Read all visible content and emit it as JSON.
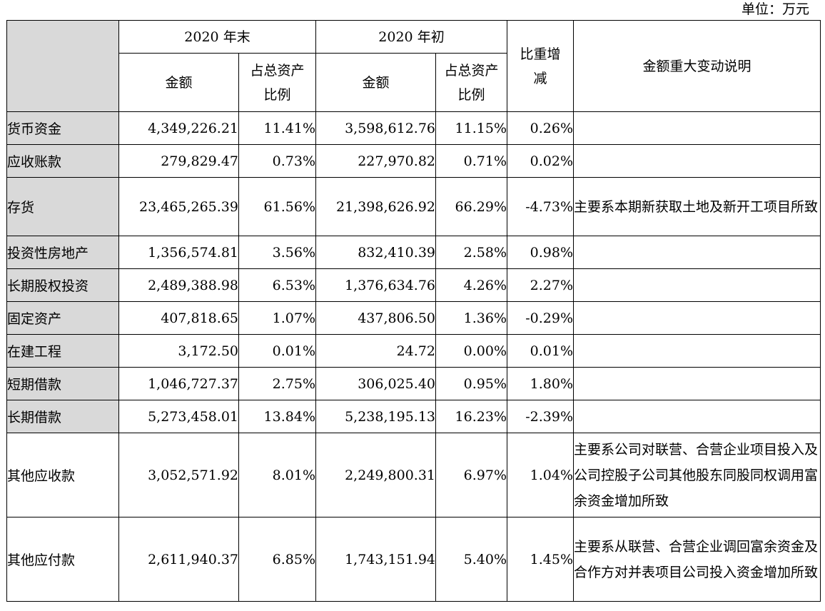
{
  "unit_label": "单位：万元",
  "header": {
    "group_end": "2020 年末",
    "group_begin": "2020 年初",
    "amount": "金额",
    "ratio": "占总资产比例",
    "change": "比重增减",
    "note": "金额重大变动说明"
  },
  "rows": [
    {
      "name": "货币资金",
      "end_amount": "4,349,226.21",
      "end_ratio": "11.41%",
      "begin_amount": "3,598,612.76",
      "begin_ratio": "11.15%",
      "change": "0.26%",
      "note": ""
    },
    {
      "name": "应收账款",
      "end_amount": "279,829.47",
      "end_ratio": "0.73%",
      "begin_amount": "227,970.82",
      "begin_ratio": "0.71%",
      "change": "0.02%",
      "note": ""
    },
    {
      "name": "存货",
      "end_amount": "23,465,265.39",
      "end_ratio": "61.56%",
      "begin_amount": "21,398,626.92",
      "begin_ratio": "66.29%",
      "change": "-4.73%",
      "note": "主要系本期新获取土地及新开工项目所致"
    },
    {
      "name": "投资性房地产",
      "end_amount": "1,356,574.81",
      "end_ratio": "3.56%",
      "begin_amount": "832,410.39",
      "begin_ratio": "2.58%",
      "change": "0.98%",
      "note": ""
    },
    {
      "name": "长期股权投资",
      "end_amount": "2,489,388.98",
      "end_ratio": "6.53%",
      "begin_amount": "1,376,634.76",
      "begin_ratio": "4.26%",
      "change": "2.27%",
      "note": ""
    },
    {
      "name": "固定资产",
      "end_amount": "407,818.65",
      "end_ratio": "1.07%",
      "begin_amount": "437,806.50",
      "begin_ratio": "1.36%",
      "change": "-0.29%",
      "note": ""
    },
    {
      "name": "在建工程",
      "end_amount": "3,172.50",
      "end_ratio": "0.01%",
      "begin_amount": "24.72",
      "begin_ratio": "0.00%",
      "change": "0.01%",
      "note": ""
    },
    {
      "name": "短期借款",
      "end_amount": "1,046,727.37",
      "end_ratio": "2.75%",
      "begin_amount": "306,025.40",
      "begin_ratio": "0.95%",
      "change": "1.80%",
      "note": ""
    },
    {
      "name": "长期借款",
      "end_amount": "5,273,458.01",
      "end_ratio": "13.84%",
      "begin_amount": "5,238,195.13",
      "begin_ratio": "16.23%",
      "change": "-2.39%",
      "note": ""
    },
    {
      "name": "其他应收款",
      "end_amount": "3,052,571.92",
      "end_ratio": "8.01%",
      "begin_amount": "2,249,800.31",
      "begin_ratio": "6.97%",
      "change": "1.04%",
      "note": "主要系公司对联营、合营企业项目投入及公司控股子公司其他股东同股同权调用富余资金增加所致"
    },
    {
      "name": "其他应付款",
      "end_amount": "2,611,940.37",
      "end_ratio": "6.85%",
      "begin_amount": "1,743,151.94",
      "begin_ratio": "5.40%",
      "change": "1.45%",
      "note": "主要系从联营、合营企业调回富余资金及合作方对并表项目公司投入资金增加所致"
    }
  ]
}
